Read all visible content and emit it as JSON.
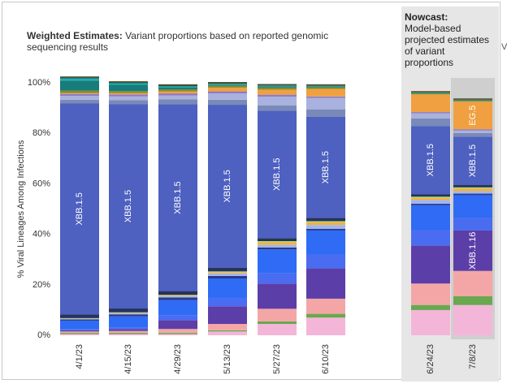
{
  "header": {
    "title_bold": "Weighted Estimates:",
    "title_rest": "Variant proportions based on reported genomic sequencing results"
  },
  "nowcast": {
    "title": "Nowcast:",
    "description": "Model-based projected estimates of variant proportions",
    "edge_text": "V"
  },
  "chart_data": {
    "type": "bar",
    "stacked": true,
    "ylabel": "% Viral Lineages Among Infections",
    "ylim": [
      0,
      100
    ],
    "yticks": [
      "0%",
      "20%",
      "40%",
      "60%",
      "80%",
      "100%"
    ],
    "categories": [
      "4/1/23",
      "4/15/23",
      "4/29/23",
      "5/13/23",
      "5/27/23",
      "6/10/23",
      "6/24/23",
      "7/8/23"
    ],
    "nowcast_categories": [
      "6/24/23",
      "7/8/23"
    ],
    "highlighted_category": "7/8/23",
    "series": [
      {
        "key": "pink",
        "color": "#f4b6d8",
        "values": [
          0.5,
          0.5,
          0.5,
          1.5,
          4.5,
          7,
          10,
          12
        ]
      },
      {
        "key": "green",
        "color": "#6aa84f",
        "values": [
          0.5,
          0.5,
          0.5,
          0.5,
          1,
          1.5,
          2,
          3.5
        ]
      },
      {
        "key": "salmon",
        "color": "#f4a6a6",
        "values": [
          0.5,
          0.7,
          1.5,
          2.5,
          5,
          6,
          8.5,
          10
        ]
      },
      {
        "key": "violet",
        "color": "#5c3ea8",
        "values": [
          0.5,
          0.8,
          3.5,
          7,
          10,
          12,
          15,
          16
        ]
      },
      {
        "key": "mediumblue",
        "color": "#4a6cf0",
        "values": [
          0.3,
          0.5,
          2,
          3,
          4,
          5.5,
          6,
          5
        ]
      },
      {
        "key": "brightblue",
        "color": "#2f6bf5",
        "values": [
          3.5,
          4.5,
          6,
          8,
          9.5,
          9.5,
          10,
          9
        ]
      },
      {
        "key": "darknavy",
        "color": "#2c3a8a",
        "values": [
          0.5,
          0.8,
          1,
          1,
          0.8,
          0.7,
          0.6,
          0.6
        ]
      },
      {
        "key": "lightblue",
        "color": "#9fb6f0",
        "values": [
          0.3,
          0.5,
          0.5,
          1,
          1,
          1.5,
          1.5,
          1
        ]
      },
      {
        "key": "orange2",
        "color": "#f5b041",
        "values": [
          0.1,
          0.2,
          0.3,
          0.5,
          1,
          1,
          0.8,
          1
        ]
      },
      {
        "key": "lime",
        "color": "#b5d96a",
        "values": [
          0.1,
          0.1,
          0.2,
          0.3,
          0.5,
          0.5,
          0.5,
          0.5
        ]
      },
      {
        "key": "navy2",
        "color": "#24335f",
        "values": [
          1.5,
          1.5,
          1.5,
          1.5,
          1.2,
          1.3,
          1,
          1
        ]
      },
      {
        "key": "XBB.1.5",
        "label": "XBB.1.5",
        "color": "#4e60c0",
        "values": [
          83.5,
          81,
          74,
          64.5,
          50.5,
          40,
          27,
          19
        ]
      },
      {
        "key": "midgray",
        "color": "#7a8ab8",
        "values": [
          1.5,
          1.5,
          2,
          2,
          2,
          3,
          3,
          1.5
        ]
      },
      {
        "key": "lavender",
        "color": "#a9b1de",
        "values": [
          1.5,
          1.5,
          1.5,
          2.5,
          3.5,
          4.5,
          2,
          1
        ]
      },
      {
        "key": "smallpurple",
        "color": "#8e7cc3",
        "values": [
          0.8,
          0.8,
          0.8,
          0.8,
          0.8,
          0.6,
          0.5,
          0.5
        ]
      },
      {
        "key": "EG.5",
        "label": "EG.5",
        "color": "#f0a040",
        "values": [
          0.3,
          0.5,
          0.8,
          1.5,
          2,
          3,
          7,
          11
        ]
      },
      {
        "key": "olive",
        "color": "#8a8a2a",
        "values": [
          1,
          0.8,
          0.8,
          0.7,
          0.8,
          0.6,
          0.4,
          0.3
        ]
      },
      {
        "key": "teal",
        "color": "#167c7c",
        "values": [
          4,
          2.5,
          0.8,
          0.5,
          0.5,
          0.4,
          0.3,
          0.3
        ]
      },
      {
        "key": "cyan",
        "color": "#1ab2b2",
        "values": [
          0.8,
          0.6,
          0.4,
          0.3,
          0.3,
          0.2,
          0.1,
          0.1
        ]
      },
      {
        "key": "darkteal",
        "color": "#0f5a5a",
        "values": [
          0.5,
          0.5,
          0.5,
          0.4,
          0.3,
          0.3,
          0.2,
          0.2
        ]
      },
      {
        "key": "XBB.1.16",
        "label": "XBB.1.16",
        "color": "#5c3ea8",
        "values": [
          0,
          0,
          0,
          0,
          0,
          0,
          0,
          0
        ]
      }
    ],
    "bar_labels": [
      {
        "category_index": 0,
        "text": "XBB.1.5",
        "series": "XBB.1.5"
      },
      {
        "category_index": 1,
        "text": "XBB.1.5",
        "series": "XBB.1.5"
      },
      {
        "category_index": 2,
        "text": "XBB.1.5",
        "series": "XBB.1.5"
      },
      {
        "category_index": 3,
        "text": "XBB.1.5",
        "series": "XBB.1.5"
      },
      {
        "category_index": 4,
        "text": "XBB.1.5",
        "series": "XBB.1.5"
      },
      {
        "category_index": 5,
        "text": "XBB.1.5",
        "series": "XBB.1.5"
      },
      {
        "category_index": 6,
        "text": "XBB.1.5",
        "series": "XBB.1.5"
      },
      {
        "category_index": 7,
        "text": "XBB.1.5",
        "series": "XBB.1.5"
      },
      {
        "category_index": 7,
        "text": "EG.5",
        "series": "EG.5"
      },
      {
        "category_index": 7,
        "text": "XBB.1.16",
        "series": "violet"
      }
    ],
    "grid": false,
    "legend": "none"
  }
}
